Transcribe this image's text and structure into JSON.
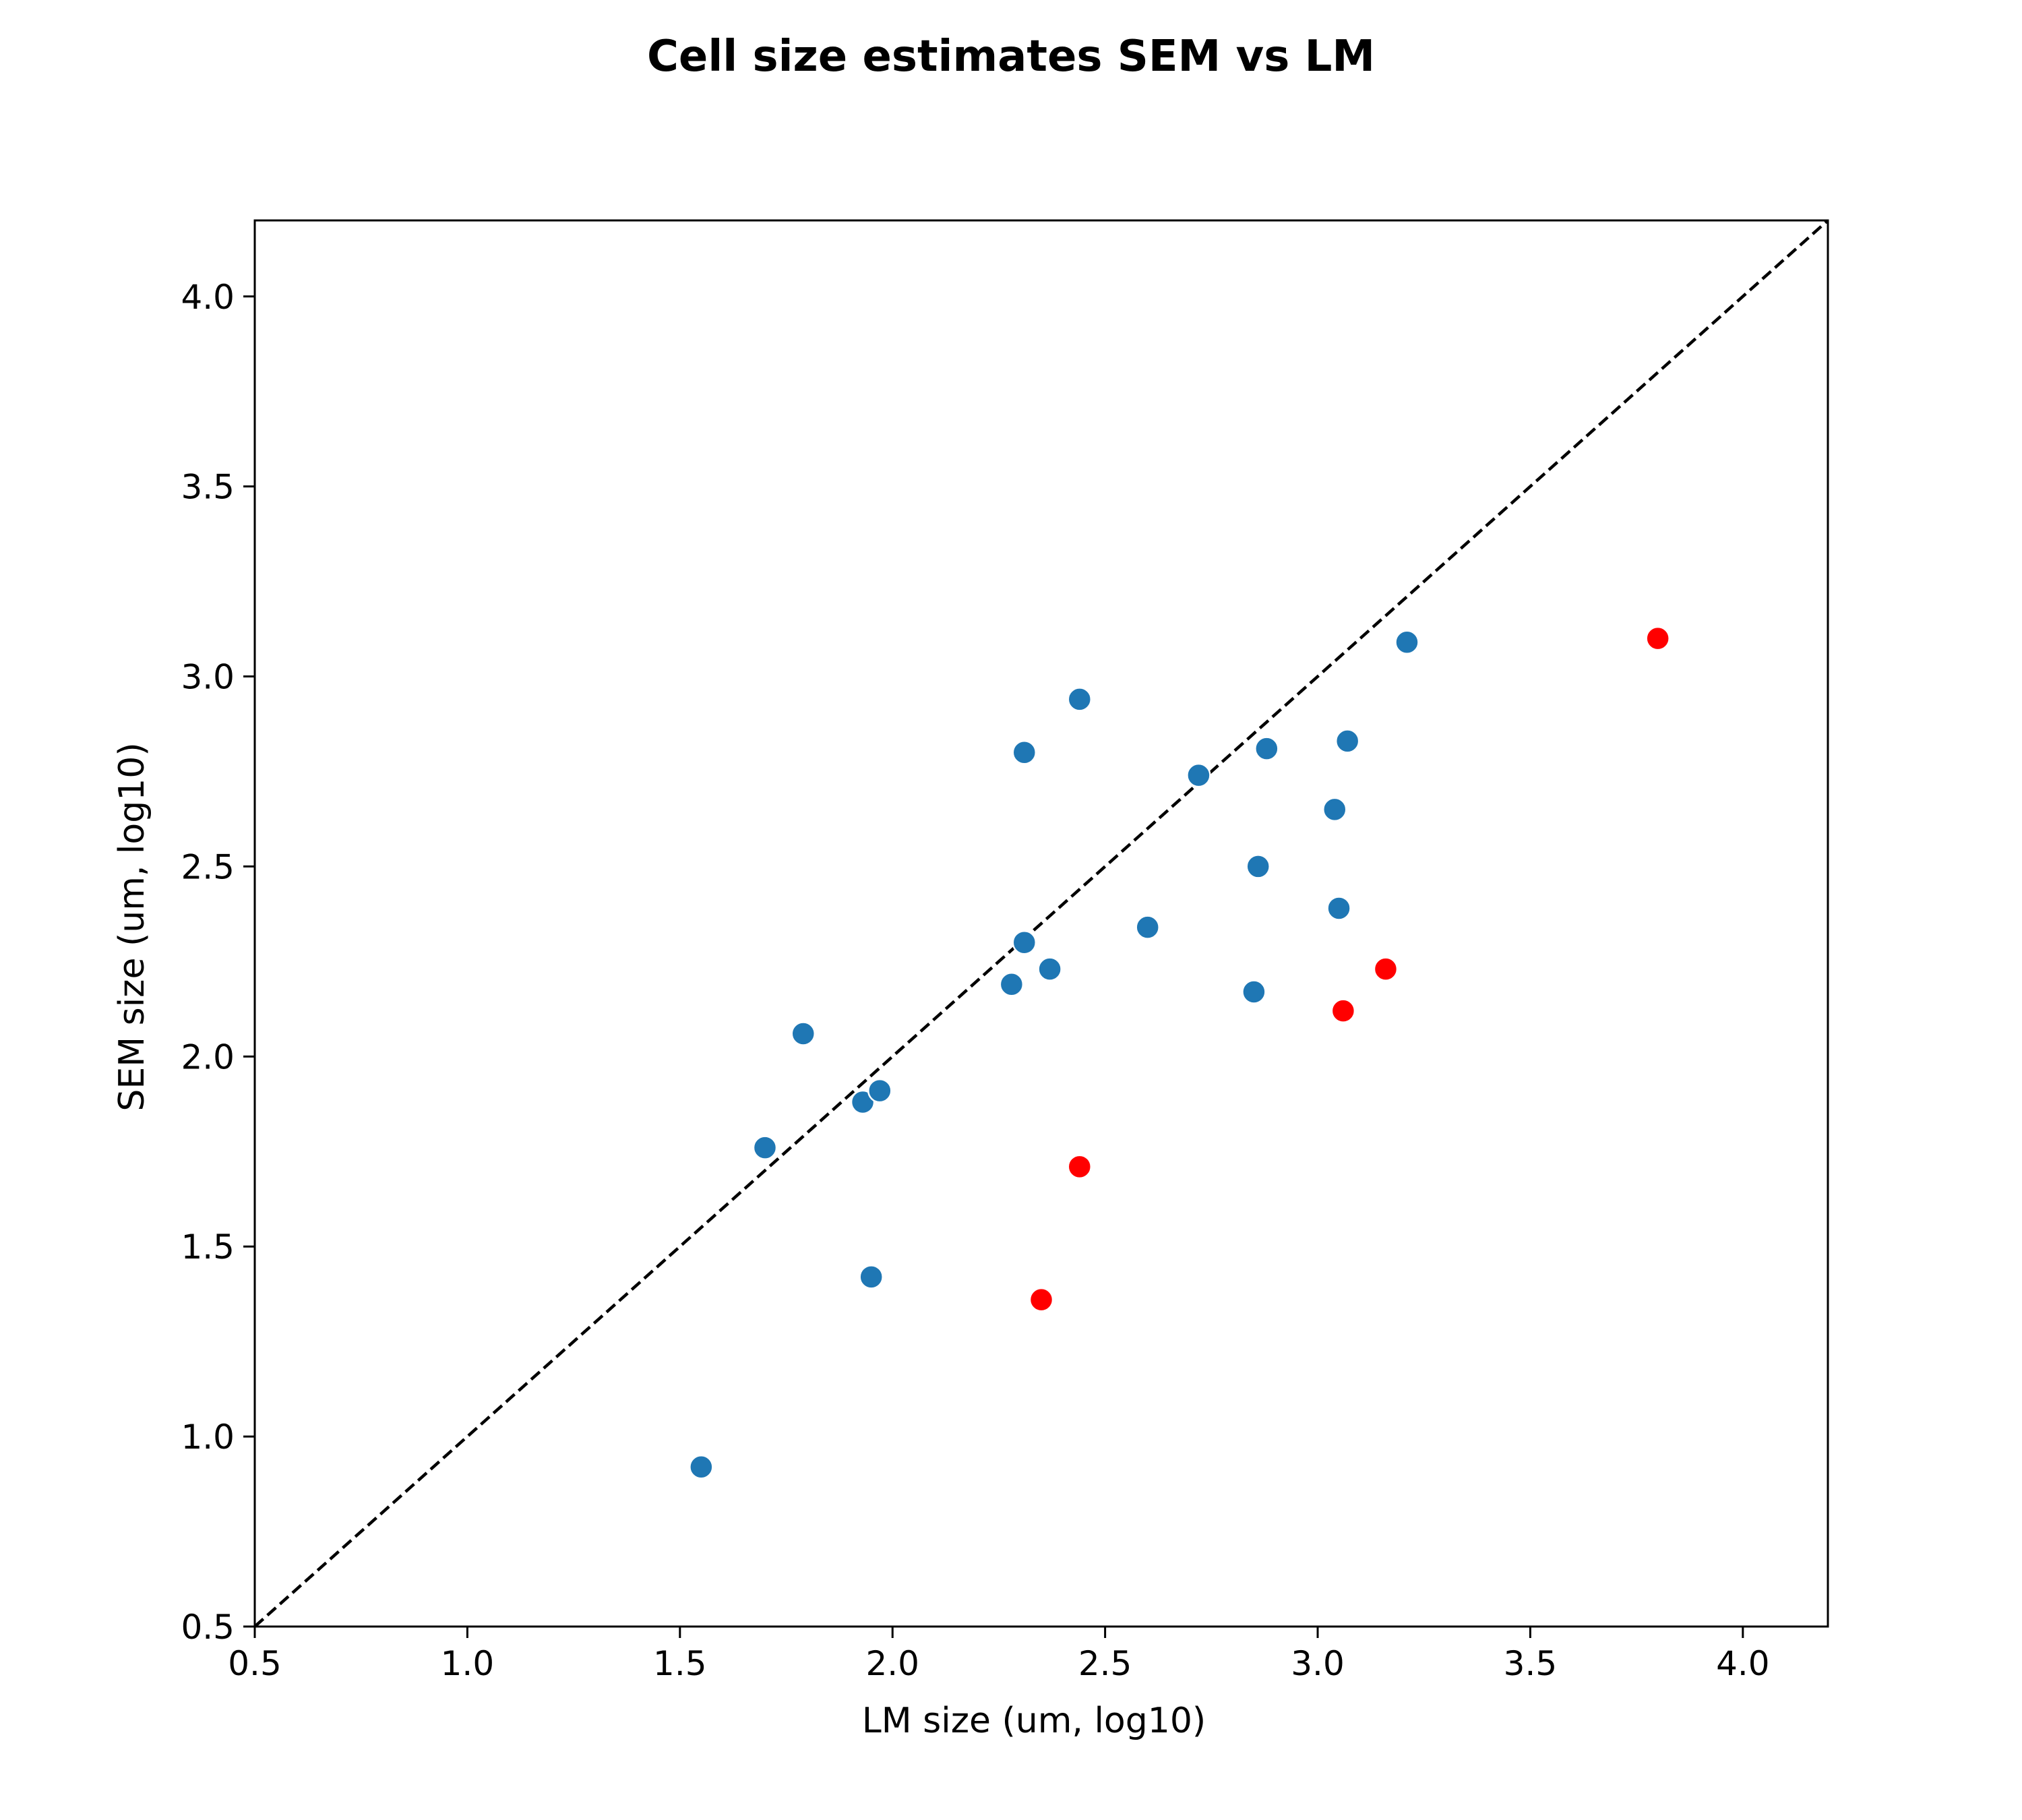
{
  "chart_data": {
    "type": "scatter",
    "title": "Cell size estimates SEM vs LM",
    "xlabel": "LM size (um, log10)",
    "ylabel": "SEM size (um, log10)",
    "xlim": [
      0.5,
      4.2
    ],
    "ylim": [
      0.5,
      4.2
    ],
    "xticks": [
      "0.5",
      "1.0",
      "1.5",
      "2.0",
      "2.5",
      "3.0",
      "3.5",
      "4.0"
    ],
    "yticks": [
      "0.5",
      "1.0",
      "1.5",
      "2.0",
      "2.5",
      "3.0",
      "3.5",
      "4.0"
    ],
    "grid": false,
    "reference_line": "y = x (dashed)",
    "colors": {
      "blue": "#1f77b4",
      "red": "#ff0000",
      "line": "#000000"
    },
    "series": [
      {
        "color": "#1f77b4",
        "points": [
          {
            "x": 1.55,
            "y": 0.92
          },
          {
            "x": 1.7,
            "y": 1.76
          },
          {
            "x": 1.79,
            "y": 2.06
          },
          {
            "x": 1.93,
            "y": 1.88
          },
          {
            "x": 1.95,
            "y": 1.42
          },
          {
            "x": 1.97,
            "y": 1.91
          },
          {
            "x": 2.28,
            "y": 2.19
          },
          {
            "x": 2.31,
            "y": 2.8
          },
          {
            "x": 2.31,
            "y": 2.3
          },
          {
            "x": 2.37,
            "y": 2.23
          },
          {
            "x": 2.44,
            "y": 2.94
          },
          {
            "x": 2.6,
            "y": 2.34
          },
          {
            "x": 2.72,
            "y": 2.74
          },
          {
            "x": 2.85,
            "y": 2.17
          },
          {
            "x": 2.86,
            "y": 2.5
          },
          {
            "x": 2.88,
            "y": 2.81
          },
          {
            "x": 3.04,
            "y": 2.65
          },
          {
            "x": 3.05,
            "y": 2.39
          },
          {
            "x": 3.07,
            "y": 2.83
          },
          {
            "x": 3.21,
            "y": 3.09
          }
        ]
      },
      {
        "color": "#ff0000",
        "points": [
          {
            "x": 2.35,
            "y": 1.36
          },
          {
            "x": 2.44,
            "y": 1.71
          },
          {
            "x": 3.06,
            "y": 2.12
          },
          {
            "x": 3.16,
            "y": 2.23
          },
          {
            "x": 3.8,
            "y": 3.1
          }
        ]
      }
    ]
  }
}
